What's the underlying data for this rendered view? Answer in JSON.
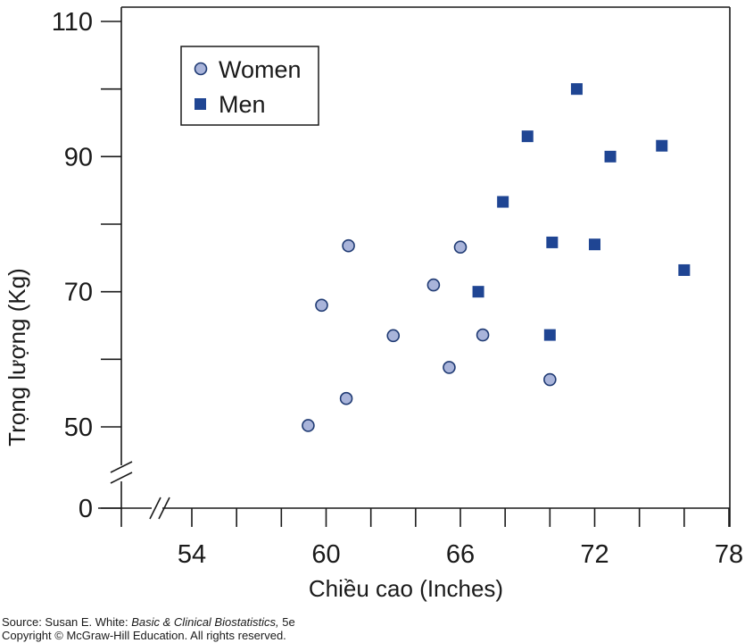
{
  "chart_data": {
    "type": "scatter",
    "title": "",
    "xlabel": "Chiều cao (Inches)",
    "ylabel": "Trọng lượng (Kg)",
    "xlim": [
      52,
      78
    ],
    "ylim_broken": {
      "lower": [
        0
      ],
      "upper": [
        45,
        110
      ]
    },
    "x_ticks": [
      54,
      56,
      58,
      60,
      62,
      64,
      66,
      68,
      70,
      72,
      74,
      76,
      78
    ],
    "x_tick_labels": [
      "54",
      "60",
      "66",
      "72",
      "78"
    ],
    "y_ticks": [
      50,
      60,
      70,
      80,
      90,
      100,
      110
    ],
    "y_tick_labels": [
      "110",
      "90",
      "70",
      "50",
      "0"
    ],
    "legend_position": "top-left",
    "grid": false,
    "series": [
      {
        "name": "Women",
        "marker": "circle",
        "color": "#a9b4da",
        "edge_color": "#1f3a73",
        "points": [
          {
            "x": 59.2,
            "y": 50.2
          },
          {
            "x": 59.8,
            "y": 68.0
          },
          {
            "x": 61.0,
            "y": 76.8
          },
          {
            "x": 60.9,
            "y": 54.2
          },
          {
            "x": 63.0,
            "y": 63.5
          },
          {
            "x": 64.8,
            "y": 71.0
          },
          {
            "x": 65.5,
            "y": 58.8
          },
          {
            "x": 66.0,
            "y": 76.6
          },
          {
            "x": 67.0,
            "y": 63.6
          },
          {
            "x": 70.0,
            "y": 57.0
          }
        ]
      },
      {
        "name": "Men",
        "marker": "square",
        "color": "#1f4593",
        "edge_color": "#1f4593",
        "points": [
          {
            "x": 66.8,
            "y": 70.0
          },
          {
            "x": 67.9,
            "y": 83.3
          },
          {
            "x": 69.0,
            "y": 93.0
          },
          {
            "x": 70.0,
            "y": 63.6
          },
          {
            "x": 70.1,
            "y": 77.3
          },
          {
            "x": 71.2,
            "y": 100.0
          },
          {
            "x": 72.0,
            "y": 77.0
          },
          {
            "x": 72.7,
            "y": 90.0
          },
          {
            "x": 75.0,
            "y": 91.6
          },
          {
            "x": 76.0,
            "y": 73.2
          }
        ]
      }
    ]
  },
  "source": {
    "prefix": "Source: Susan E. White: ",
    "book": "Basic & Clinical Biostatistics,",
    "edition": " 5e",
    "copyright": "Copyright © McGraw-Hill Education. All rights reserved."
  }
}
